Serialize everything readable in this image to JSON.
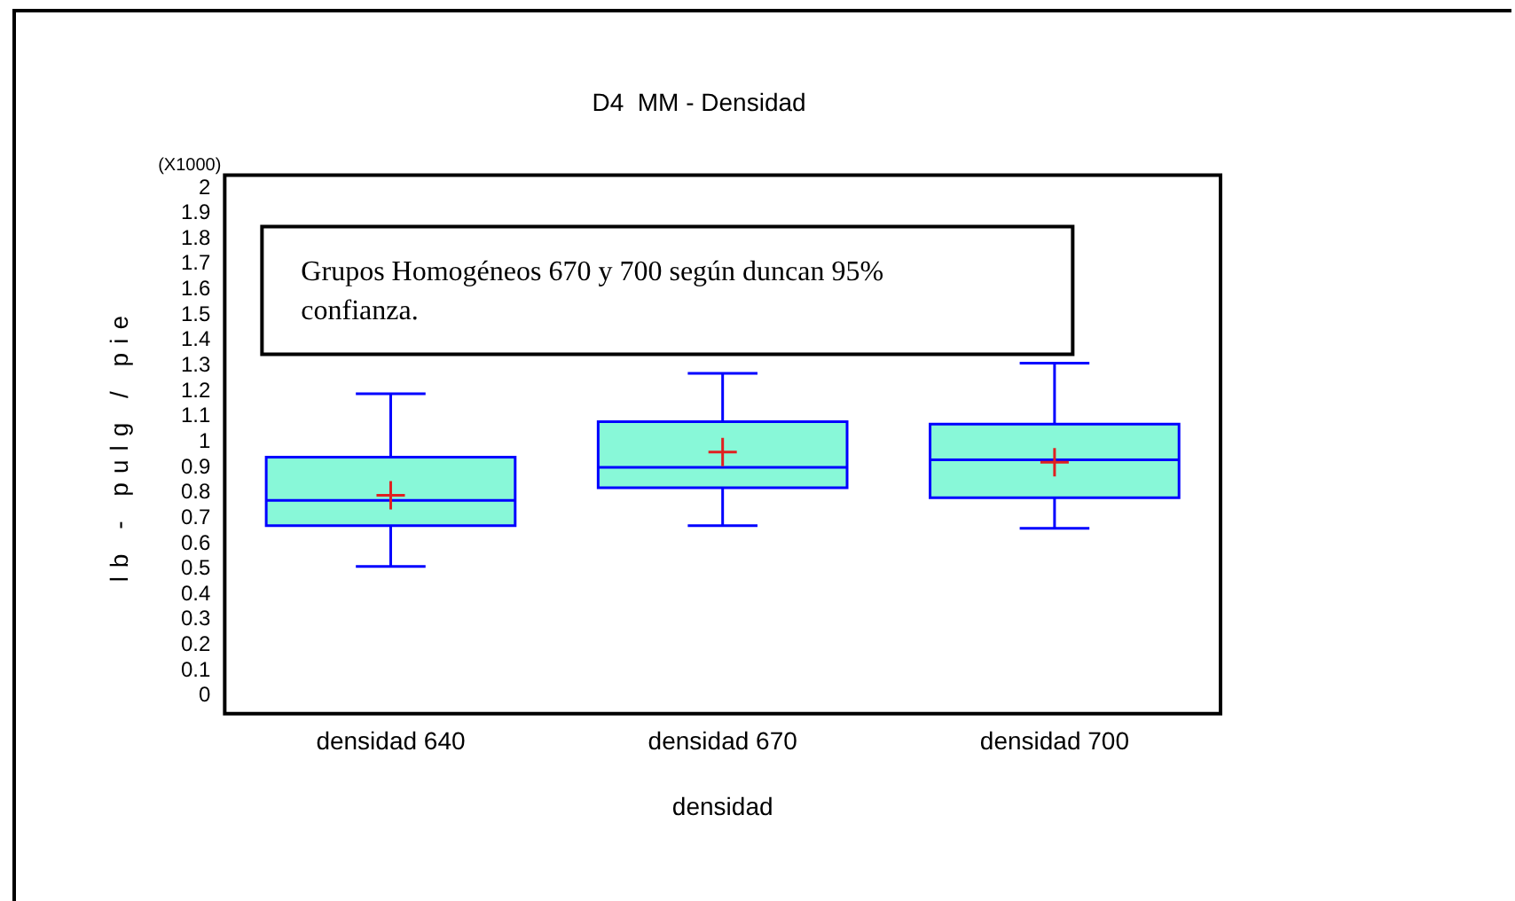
{
  "chart_data": {
    "type": "box",
    "title": "D4  MM - Densidad",
    "xlabel": "densidad",
    "ylabel": "lb - pulg / pie",
    "categories": [
      "densidad 640",
      "densidad 670",
      "densidad 700"
    ],
    "boxes": [
      {
        "low": 0.51,
        "q1": 0.67,
        "median": 0.77,
        "q3": 0.94,
        "high": 1.19,
        "mean": 0.79
      },
      {
        "low": 0.67,
        "q1": 0.82,
        "median": 0.9,
        "q3": 1.08,
        "high": 1.27,
        "mean": 0.96
      },
      {
        "low": 0.66,
        "q1": 0.78,
        "median": 0.93,
        "q3": 1.07,
        "high": 1.31,
        "mean": 0.92
      }
    ],
    "color": "#88f8d8",
    "ylim": [
      -0.07,
      2.05
    ],
    "yticks": [
      0,
      0.1,
      0.2,
      0.3,
      0.4,
      0.5,
      0.6,
      0.7,
      0.8,
      0.9,
      1,
      1.1,
      1.2,
      1.3,
      1.4,
      1.5,
      1.6,
      1.7,
      1.8,
      1.9,
      2
    ],
    "grid": false,
    "legend": false,
    "annotations": [
      "Grupos Homogéneos 670 y 700 según duncan 95% confianza.",
      "(X1000)"
    ]
  }
}
